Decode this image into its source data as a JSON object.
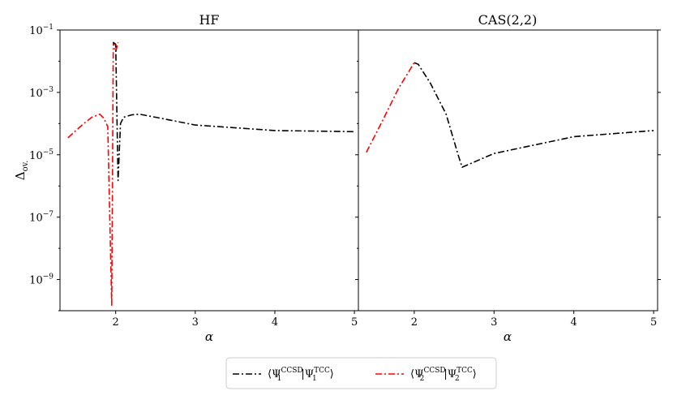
{
  "chart_data": [
    {
      "type": "line",
      "title": "HF",
      "xlabel": "α",
      "ylabel": "Δ",
      "ylabel_sub": "ov.",
      "yscale": "log",
      "xlim": [
        1.3,
        5.05
      ],
      "ylim": [
        1e-10,
        0.1
      ],
      "xticks": [
        2,
        3,
        4,
        5
      ],
      "yticks": [
        {
          "base": "10",
          "exp": "−1",
          "value": 0.1
        },
        {
          "base": "10",
          "exp": "−3",
          "value": 0.001
        },
        {
          "base": "10",
          "exp": "−5",
          "value": 1e-05
        },
        {
          "base": "10",
          "exp": "−7",
          "value": 1e-07
        },
        {
          "base": "10",
          "exp": "−9",
          "value": 1e-09
        }
      ],
      "series": [
        {
          "color": "#ff0000",
          "dash": "dashdot",
          "x": [
            1.4,
            1.5,
            1.6,
            1.7,
            1.8,
            1.85,
            1.9,
            1.95,
            1.97,
            2.0,
            2.03
          ],
          "y": [
            3.5e-05,
            6e-05,
            0.0001,
            0.00016,
            0.0002,
            0.00015,
            8e-05,
            1.5e-10,
            0.04,
            0.02,
            0.04
          ]
        },
        {
          "color": "#000000",
          "dash": "dashdot",
          "x": [
            1.97,
            2.0,
            2.03,
            2.06,
            2.1,
            2.2,
            2.3,
            2.5,
            3.0,
            4.0,
            5.0
          ],
          "y": [
            0.04,
            0.035,
            1.5e-06,
            0.0001,
            0.00016,
            0.00019,
            0.0002,
            0.00016,
            9e-05,
            6e-05,
            5.5e-05
          ]
        }
      ]
    },
    {
      "type": "line",
      "title": "CAS(2,2)",
      "xlabel": "α",
      "yscale": "log",
      "xlim": [
        1.3,
        5.05
      ],
      "ylim": [
        1e-10,
        0.1
      ],
      "xticks": [
        2,
        3,
        4,
        5
      ],
      "series": [
        {
          "color": "#ff0000",
          "dash": "dashdot",
          "x": [
            1.4,
            1.6,
            1.8,
            2.0
          ],
          "y": [
            1.2e-05,
            0.00012,
            0.0013,
            0.009
          ]
        },
        {
          "color": "#000000",
          "dash": "dashdot",
          "x": [
            2.0,
            2.05,
            2.2,
            2.4,
            2.55,
            2.6,
            3.0,
            4.0,
            5.0
          ],
          "y": [
            0.009,
            0.008,
            0.002,
            0.0002,
            1e-05,
            4e-06,
            1.1e-05,
            3.8e-05,
            6e-05
          ]
        }
      ]
    }
  ],
  "legend": {
    "placement": "bottom-center",
    "entries": [
      {
        "color": "#000000",
        "bra": "⟨Ψ",
        "bra_sub": "1",
        "bra_sup": "CCSD",
        "ket": "|Ψ",
        "ket_sub": "1",
        "ket_sup": "TCC",
        "close": "⟩"
      },
      {
        "color": "#ff0000",
        "bra": "⟨Ψ",
        "bra_sub": "2",
        "bra_sup": "CCSD",
        "ket": "|Ψ",
        "ket_sub": "2",
        "ket_sup": "TCC",
        "close": "⟩"
      }
    ]
  }
}
